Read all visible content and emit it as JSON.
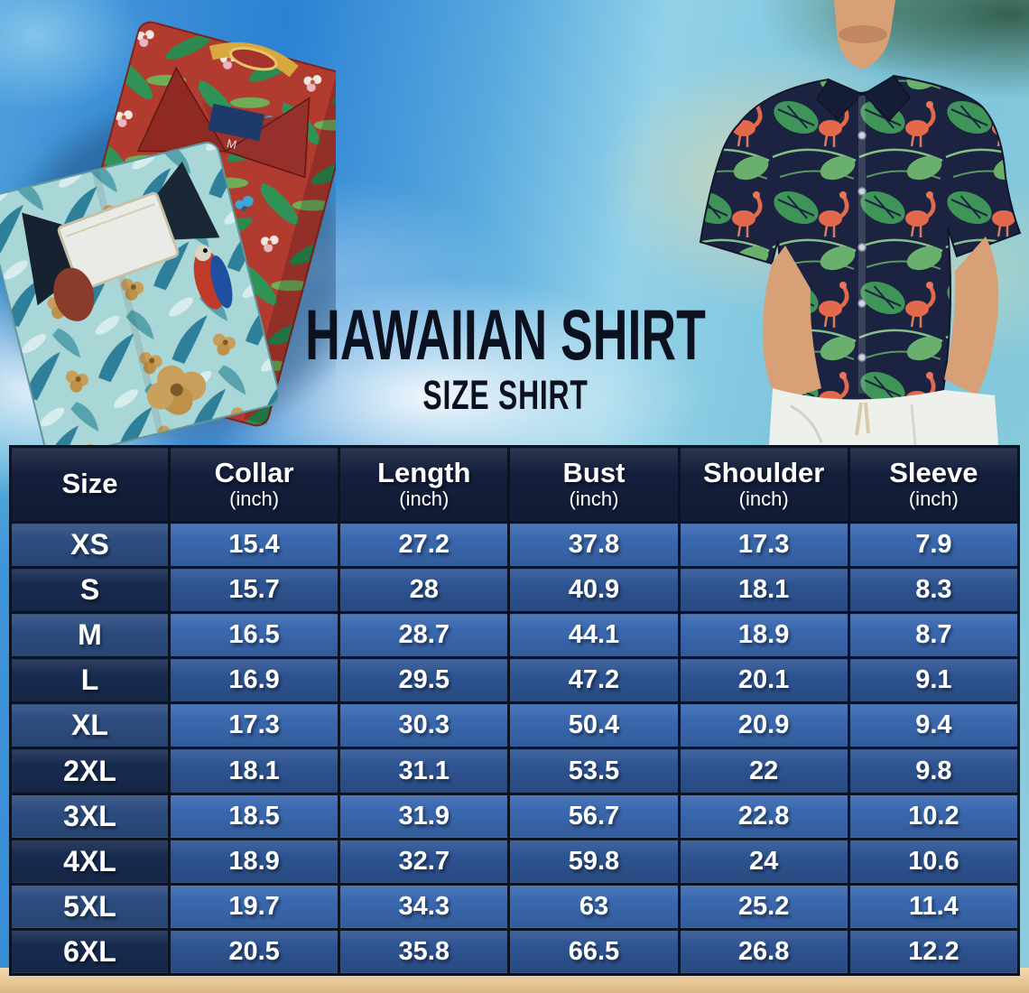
{
  "header": {
    "title": "HAWAIIAN SHIRT",
    "subtitle": "SIZE SHIRT"
  },
  "images": {
    "shirt_size_tag": "M"
  },
  "chart_data": {
    "type": "table",
    "title": "HAWAIIAN SHIRT",
    "subtitle": "SIZE SHIRT",
    "columns": [
      {
        "label": "Size",
        "unit": ""
      },
      {
        "label": "Collar",
        "unit": "(inch)"
      },
      {
        "label": "Length",
        "unit": "(inch)"
      },
      {
        "label": "Bust",
        "unit": "(inch)"
      },
      {
        "label": "Shoulder",
        "unit": "(inch)"
      },
      {
        "label": "Sleeve",
        "unit": "(inch)"
      }
    ],
    "rows": [
      [
        "XS",
        "15.4",
        "27.2",
        "37.8",
        "17.3",
        "7.9"
      ],
      [
        "S",
        "15.7",
        "28",
        "40.9",
        "18.1",
        "8.3"
      ],
      [
        "M",
        "16.5",
        "28.7",
        "44.1",
        "18.9",
        "8.7"
      ],
      [
        "L",
        "16.9",
        "29.5",
        "47.2",
        "20.1",
        "9.1"
      ],
      [
        "XL",
        "17.3",
        "30.3",
        "50.4",
        "20.9",
        "9.4"
      ],
      [
        "2XL",
        "18.1",
        "31.1",
        "53.5",
        "22",
        "9.8"
      ],
      [
        "3XL",
        "18.5",
        "31.9",
        "56.7",
        "22.8",
        "10.2"
      ],
      [
        "4XL",
        "18.9",
        "32.7",
        "59.8",
        "24",
        "10.6"
      ],
      [
        "5XL",
        "19.7",
        "34.3",
        "63",
        "25.2",
        "11.4"
      ],
      [
        "6XL",
        "20.5",
        "35.8",
        "66.5",
        "26.8",
        "12.2"
      ]
    ]
  },
  "colors": {
    "header_bg": "#141f3c",
    "size_col_light": "#2d4d80",
    "size_col_dark": "#182b50",
    "data_cell_light": "#3a68af",
    "data_cell_dark": "#2e5492",
    "table_border": "#0b1322",
    "cell_text": "#ffffff",
    "title_text": "#0c1120",
    "sand": "#e7c697",
    "sky_blue": "#2b81d3",
    "red_shirt": "#b23b30",
    "teal_shirt": "#a9d6d6",
    "navy_shirt": "#1b2340",
    "flamingo": "#e4684a",
    "leaf_green": "#3f9457"
  }
}
